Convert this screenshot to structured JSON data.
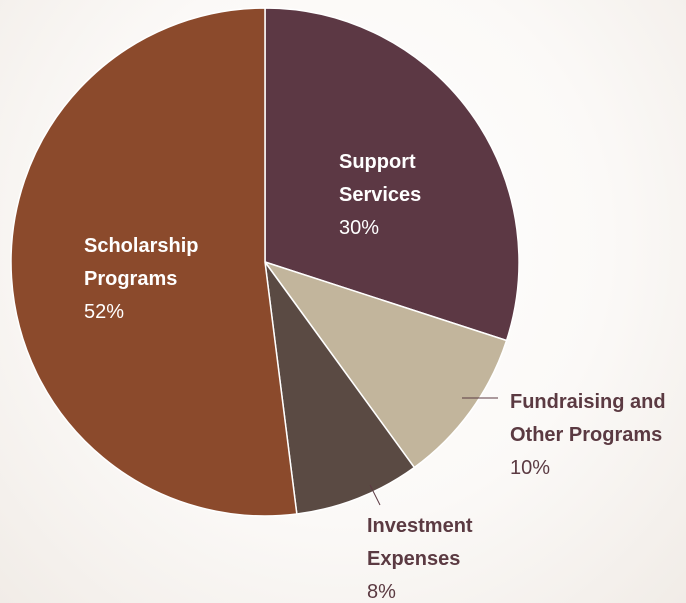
{
  "chart_data": {
    "type": "pie",
    "title": "",
    "slices": [
      {
        "name_lines": [
          "Support",
          "Services"
        ],
        "label": "30%",
        "value": 30,
        "color": "#5c3844",
        "label_color": "#ffffff"
      },
      {
        "name_lines": [
          "Fundraising and",
          "Other Programs"
        ],
        "label": "10%",
        "value": 10,
        "color": "#c2b59c",
        "label_color": "#5b3a42"
      },
      {
        "name_lines": [
          "Investment",
          "Expenses"
        ],
        "label": "8%",
        "value": 8,
        "color": "#5a4a43",
        "label_color": "#5b3a42"
      },
      {
        "name_lines": [
          "Scholarship",
          "Programs"
        ],
        "label": "52%",
        "value": 52,
        "color": "#8b4a2c",
        "label_color": "#ffffff"
      }
    ],
    "legend": "none"
  }
}
